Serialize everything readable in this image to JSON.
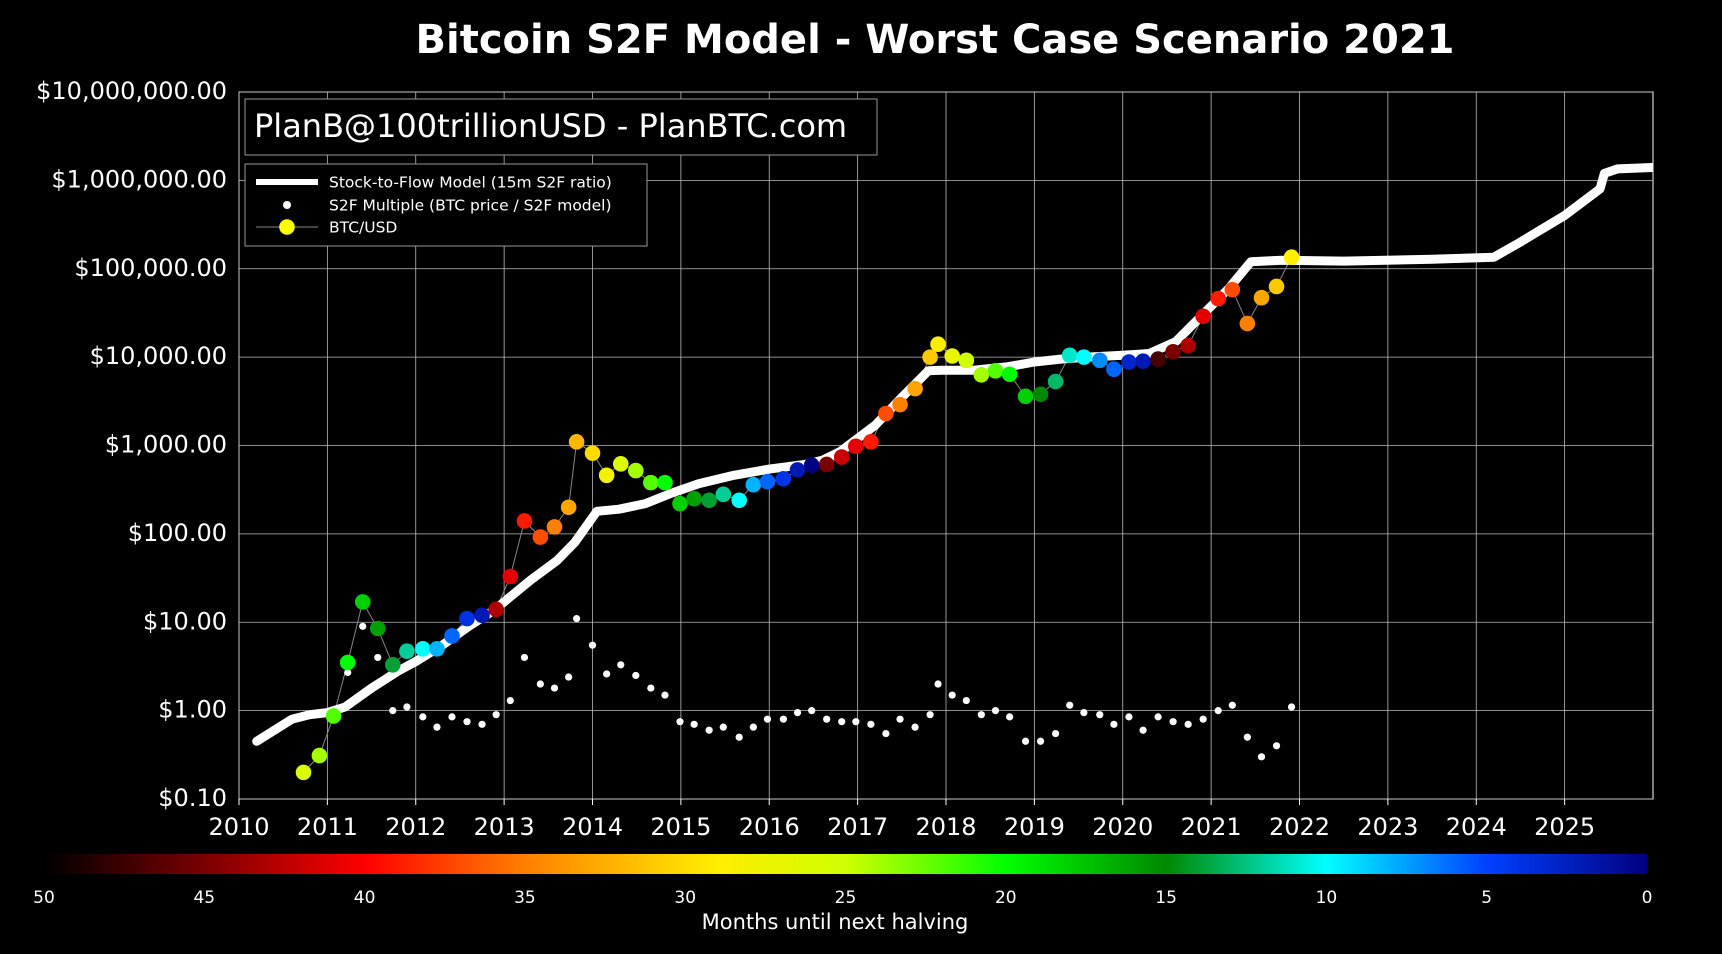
{
  "chart_data": {
    "type": "scatter",
    "title": "Bitcoin S2F Model - Worst Case Scenario 2021",
    "annotation": "PlanB@100trillionUSD - PlanBTC.com",
    "log_scale": true,
    "grid": true,
    "legend": "upper left",
    "xlim": [
      2010,
      2026
    ],
    "xticks": [
      2010,
      2011,
      2012,
      2013,
      2014,
      2015,
      2016,
      2017,
      2018,
      2019,
      2020,
      2021,
      2022,
      2023,
      2024,
      2025
    ],
    "ylim": [
      0.1,
      10000000
    ],
    "yticks": [
      {
        "value": 0.1,
        "label": "$0.10"
      },
      {
        "value": 1,
        "label": "$1.00"
      },
      {
        "value": 10,
        "label": "$10.00"
      },
      {
        "value": 100,
        "label": "$100.00"
      },
      {
        "value": 1000,
        "label": "$1,000.00"
      },
      {
        "value": 10000,
        "label": "$10,000.00"
      },
      {
        "value": 100000,
        "label": "$100,000.00"
      },
      {
        "value": 1000000,
        "label": "$1,000,000.00"
      },
      {
        "value": 10000000,
        "label": "$10,000,000.00"
      }
    ],
    "model": {
      "name": "Stock-to-Flow Model (15m S2F ratio)",
      "color": "#ffffff",
      "x": [
        2010.2,
        2010.4,
        2010.6,
        2010.8,
        2011.0,
        2011.2,
        2011.5,
        2011.8,
        2012.0,
        2012.3,
        2012.6,
        2012.9,
        2013.0,
        2013.3,
        2013.6,
        2013.8,
        2014.05,
        2014.3,
        2014.6,
        2014.9,
        2015.2,
        2015.6,
        2016.0,
        2016.4,
        2016.6,
        2016.8,
        2017.0,
        2017.2,
        2017.5,
        2017.8,
        2017.95,
        2018.3,
        2018.7,
        2019.0,
        2019.3,
        2019.6,
        2020.0,
        2020.3,
        2020.6,
        2020.9,
        2021.2,
        2021.45,
        2021.8,
        2022.5,
        2023.5,
        2024.2,
        2024.5,
        2025.0,
        2025.4,
        2025.45,
        2025.6,
        2026.0
      ],
      "values": [
        0.45,
        0.6,
        0.8,
        0.9,
        0.95,
        1.1,
        1.8,
        2.8,
        3.6,
        5.5,
        9,
        14,
        17,
        30,
        50,
        80,
        180,
        190,
        220,
        290,
        370,
        460,
        540,
        610,
        680,
        850,
        1200,
        1700,
        3500,
        7000,
        7100,
        7100,
        7800,
        8800,
        9500,
        10000,
        10500,
        11000,
        15000,
        30000,
        60000,
        120000,
        125000,
        122000,
        128000,
        135000,
        200000,
        400000,
        800000,
        1200000,
        1350000,
        1400000
      ]
    },
    "x": [
      2010.73,
      2010.91,
      2011.07,
      2011.23,
      2011.4,
      2011.57,
      2011.74,
      2011.9,
      2012.08,
      2012.24,
      2012.41,
      2012.58,
      2012.75,
      2012.91,
      2013.07,
      2013.23,
      2013.41,
      2013.57,
      2013.73,
      2013.82,
      2014.0,
      2014.16,
      2014.32,
      2014.49,
      2014.66,
      2014.82,
      2014.99,
      2015.15,
      2015.32,
      2015.48,
      2015.66,
      2015.82,
      2015.98,
      2016.16,
      2016.32,
      2016.48,
      2016.65,
      2016.82,
      2016.98,
      2017.15,
      2017.32,
      2017.48,
      2017.65,
      2017.82,
      2017.91,
      2018.07,
      2018.23,
      2018.4,
      2018.56,
      2018.72,
      2018.9,
      2019.07,
      2019.24,
      2019.4,
      2019.56,
      2019.74,
      2019.9,
      2020.07,
      2020.23,
      2020.4,
      2020.57,
      2020.74,
      2020.91,
      2021.08,
      2021.24,
      2021.41,
      2021.57,
      2021.74,
      2021.91
    ],
    "series": [
      {
        "name": "S2F Multiple (BTC price / S2F model)",
        "color": "#ffffff",
        "values": [
          null,
          null,
          0.9,
          2.7,
          9,
          4,
          1.0,
          1.1,
          0.85,
          0.65,
          0.85,
          0.75,
          0.7,
          0.9,
          1.3,
          4,
          2,
          1.8,
          2.4,
          11,
          5.5,
          2.6,
          3.3,
          2.5,
          1.8,
          1.5,
          0.75,
          0.7,
          0.6,
          0.65,
          0.5,
          0.65,
          0.8,
          0.8,
          0.95,
          1.0,
          0.8,
          0.75,
          0.75,
          0.7,
          0.55,
          0.8,
          0.65,
          0.9,
          2,
          1.5,
          1.3,
          0.9,
          1.0,
          0.85,
          0.45,
          0.45,
          0.55,
          1.15,
          0.95,
          0.9,
          0.7,
          0.85,
          0.6,
          0.85,
          0.75,
          0.7,
          0.8,
          1.0,
          1.15,
          0.5,
          0.3,
          0.4,
          1.1
        ]
      },
      {
        "name": "BTC/USD",
        "color": "#ffff00",
        "line_color": "#888888",
        "values": [
          0.2,
          0.31,
          0.87,
          3.5,
          17,
          8.5,
          3.3,
          4.7,
          5,
          5,
          7,
          11,
          12,
          14,
          33,
          140,
          92,
          120,
          200,
          1100,
          820,
          460,
          620,
          520,
          380,
          380,
          220,
          250,
          240,
          280,
          240,
          360,
          390,
          420,
          530,
          600,
          610,
          740,
          980,
          1100,
          2300,
          2900,
          4400,
          10000,
          14000,
          10300,
          9200,
          6300,
          7000,
          6400,
          3600,
          3800,
          5300,
          10500,
          10000,
          9200,
          7300,
          8800,
          9000,
          9500,
          11500,
          13500,
          29000,
          46000,
          58000,
          24000,
          47000,
          63000,
          135000
        ],
        "c": [
          26,
          24,
          22,
          20,
          18,
          16,
          14,
          12,
          10,
          8,
          6,
          4,
          2,
          43,
          41,
          39,
          37,
          35,
          33,
          32,
          30,
          28,
          26,
          24,
          22,
          20,
          18,
          16,
          14,
          12,
          10,
          8,
          6,
          4,
          2,
          0,
          45,
          42,
          41,
          39,
          37,
          35,
          33,
          31,
          29,
          27,
          25,
          24,
          22,
          20,
          18,
          15,
          13,
          11,
          10,
          7,
          6,
          3,
          2,
          47,
          45,
          43,
          41,
          39,
          37,
          35,
          33,
          31,
          29
        ]
      }
    ],
    "colorbar": {
      "label": "Months until next halving",
      "lim": [
        50,
        0
      ],
      "ticks": [
        50,
        45,
        40,
        35,
        30,
        25,
        20,
        15,
        10,
        5,
        0
      ],
      "colormap": [
        {
          "value": 50,
          "color": "#000000"
        },
        {
          "value": 45,
          "color": "#7a0000"
        },
        {
          "value": 40,
          "color": "#ff0000"
        },
        {
          "value": 35,
          "color": "#ff8000"
        },
        {
          "value": 29,
          "color": "#ffee00"
        },
        {
          "value": 25,
          "color": "#d0ff00"
        },
        {
          "value": 20,
          "color": "#00ff00"
        },
        {
          "value": 15,
          "color": "#008800"
        },
        {
          "value": 10,
          "color": "#00ffff"
        },
        {
          "value": 5,
          "color": "#0040ff"
        },
        {
          "value": 0,
          "color": "#000080"
        }
      ]
    }
  }
}
